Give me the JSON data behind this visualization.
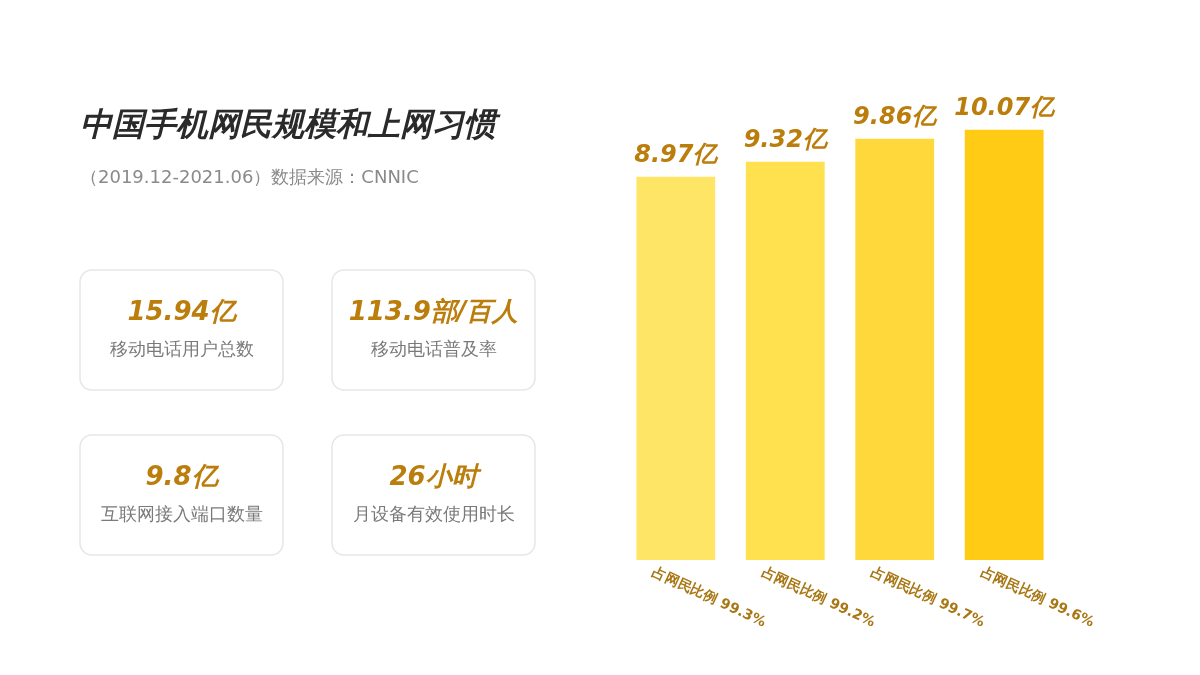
{
  "chart_data": [
    {
      "type": "other",
      "title": "中国手机网民规模和上网习惯",
      "subtitle": "（2019.12-2021.06）数据来源：CNNIC",
      "annotations": [
        "15.94亿",
        "移动电话用户总数",
        "113.9部/百人",
        "移动电话普及率",
        "9.8亿",
        "互联网接入端口数量",
        "26小时",
        "月设备有效使用时长"
      ]
    },
    {
      "type": "bar",
      "categories": [
        null,
        null,
        null,
        null
      ],
      "values": [
        8.97,
        9.32,
        9.86,
        10.07
      ],
      "colors": [
        "#ffe566",
        "#ffe04f",
        "#ffd83c",
        "#ffcb14"
      ],
      "value_labels": [
        "8.97亿",
        "9.32亿",
        "9.86亿",
        "10.07亿"
      ],
      "annotations": [
        "占网民比例 99.3%",
        "占网民比例 99.2%",
        "占网民比例 99.7%",
        "占网民比例 99.6%"
      ],
      "tick_labels": false
    }
  ]
}
